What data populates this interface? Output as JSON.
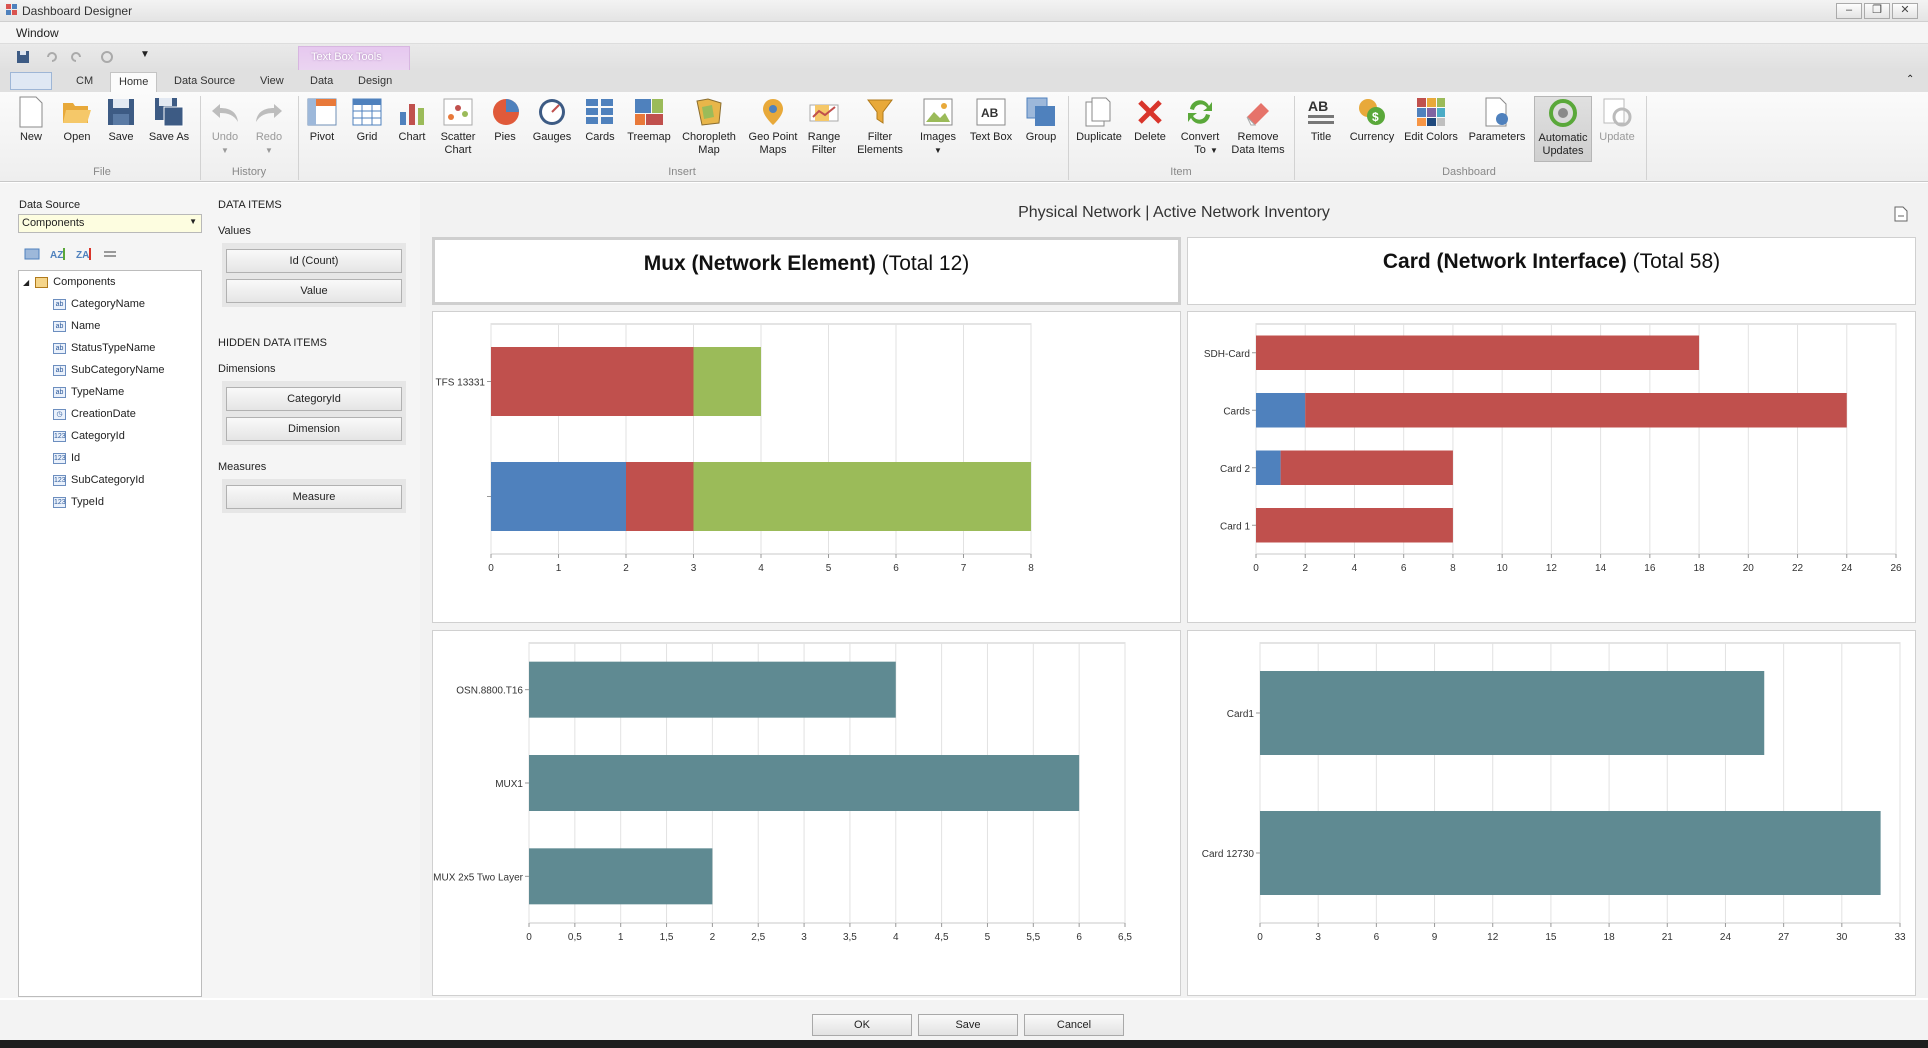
{
  "window": {
    "title": "Dashboard Designer",
    "menu": "Window"
  },
  "tabs": [
    "CM",
    "Home",
    "Data Source",
    "View",
    "Data",
    "Design"
  ],
  "context_tab": "Text Box Tools",
  "ribbon": {
    "file": {
      "label": "File",
      "items": [
        "New",
        "Open",
        "Save",
        "Save As"
      ]
    },
    "history": {
      "label": "History",
      "items": [
        "Undo",
        "Redo"
      ]
    },
    "insert": {
      "label": "Insert",
      "items": [
        "Pivot",
        "Grid",
        "Chart",
        "Scatter Chart",
        "Pies",
        "Gauges",
        "Cards",
        "Treemap",
        "Choropleth Map",
        "Geo Point Maps",
        "Range Filter",
        "Filter Elements",
        "Images",
        "Text Box",
        "Group"
      ]
    },
    "item": {
      "label": "Item",
      "items": [
        "Duplicate",
        "Delete",
        "Convert To",
        "Remove Data Items"
      ]
    },
    "dashboard": {
      "label": "Dashboard",
      "items": [
        "Title",
        "Currency",
        "Edit Colors",
        "Parameters",
        "Automatic Updates",
        "Update"
      ]
    }
  },
  "left": {
    "data_source_label": "Data Source",
    "data_source_value": "Components",
    "root": "Components",
    "fields": [
      "CategoryName",
      "Name",
      "StatusTypeName",
      "SubCategoryName",
      "TypeName",
      "CreationDate",
      "CategoryId",
      "Id",
      "SubCategoryId",
      "TypeId"
    ]
  },
  "mid": {
    "data_items": "DATA ITEMS",
    "values_label": "Values",
    "values": [
      "Id (Count)",
      "Value"
    ],
    "hidden": "HIDDEN DATA ITEMS",
    "dimensions_label": "Dimensions",
    "dimensions": [
      "CategoryId",
      "Dimension"
    ],
    "measures_label": "Measures",
    "measures": [
      "Measure"
    ]
  },
  "dashboard": {
    "title": "Physical Network | Active Network Inventory",
    "panel1_bold": "Mux (Network Element)",
    "panel1_rest": " (Total 12)",
    "panel2_bold": "Card (Network Interface)",
    "panel2_rest": " (Total 58)"
  },
  "buttons": {
    "ok": "OK",
    "save": "Save",
    "cancel": "Cancel"
  },
  "chart_data": [
    {
      "type": "bar",
      "orientation": "horizontal",
      "stacked": true,
      "categories": [
        "TFS 13331",
        ""
      ],
      "series": [
        {
          "color": "#4f81bd",
          "values": [
            0,
            2
          ]
        },
        {
          "color": "#c0504d",
          "values": [
            3,
            1
          ]
        },
        {
          "color": "#9bbb59",
          "values": [
            1,
            5
          ]
        }
      ],
      "xlim": [
        0,
        8
      ],
      "xticks": [
        "0",
        "1",
        "2",
        "3",
        "4",
        "5",
        "6",
        "7",
        "8"
      ]
    },
    {
      "type": "bar",
      "orientation": "horizontal",
      "stacked": true,
      "categories": [
        "SDH-Card",
        "Cards",
        "Card 2",
        "Card 1"
      ],
      "series": [
        {
          "color": "#4f81bd",
          "values": [
            0,
            2,
            1,
            0
          ]
        },
        {
          "color": "#c0504d",
          "values": [
            18,
            22,
            7,
            8
          ]
        }
      ],
      "xlim": [
        0,
        26
      ],
      "xticks": [
        "0",
        "2",
        "4",
        "6",
        "8",
        "10",
        "12",
        "14",
        "16",
        "18",
        "20",
        "22",
        "24",
        "26"
      ]
    },
    {
      "type": "bar",
      "orientation": "horizontal",
      "categories": [
        "OSN.8800.T16",
        "MUX1",
        "MUX 2x5 Two Layer"
      ],
      "series": [
        {
          "color": "#5f8a92",
          "values": [
            4,
            6,
            2
          ]
        }
      ],
      "xlim": [
        0,
        6.5
      ],
      "xticks": [
        "0",
        "0,5",
        "1",
        "1,5",
        "2",
        "2,5",
        "3",
        "3,5",
        "4",
        "4,5",
        "5",
        "5,5",
        "6",
        "6,5"
      ]
    },
    {
      "type": "bar",
      "orientation": "horizontal",
      "categories": [
        "Card1",
        "Card 12730"
      ],
      "series": [
        {
          "color": "#5f8a92",
          "values": [
            26,
            32
          ]
        }
      ],
      "xlim": [
        0,
        33
      ],
      "xticks": [
        "0",
        "3",
        "6",
        "9",
        "12",
        "15",
        "18",
        "21",
        "24",
        "27",
        "30",
        "33"
      ]
    }
  ]
}
